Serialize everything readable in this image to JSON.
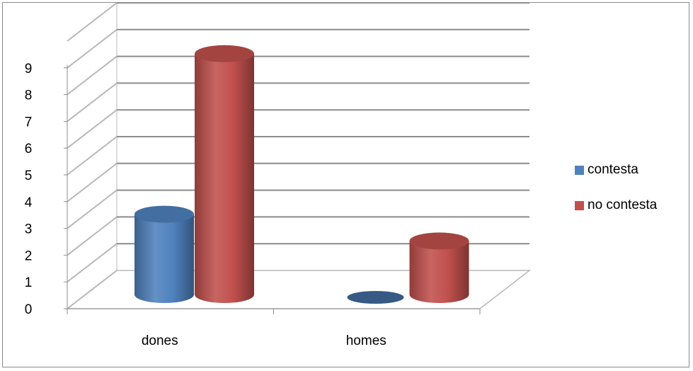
{
  "chart_data": {
    "type": "bar",
    "style": "3d-cylinder",
    "categories": [
      "dones",
      "homes"
    ],
    "series": [
      {
        "name": "contesta",
        "values": [
          3,
          0
        ],
        "color": "#4F81BD"
      },
      {
        "name": "no contesta",
        "values": [
          9,
          2
        ],
        "color": "#C0504D"
      }
    ],
    "y_ticks": [
      "0",
      "1",
      "2",
      "3",
      "4",
      "5",
      "6",
      "7",
      "8",
      "9"
    ],
    "ylim": [
      0,
      10
    ],
    "grid": true,
    "legend": "right"
  }
}
